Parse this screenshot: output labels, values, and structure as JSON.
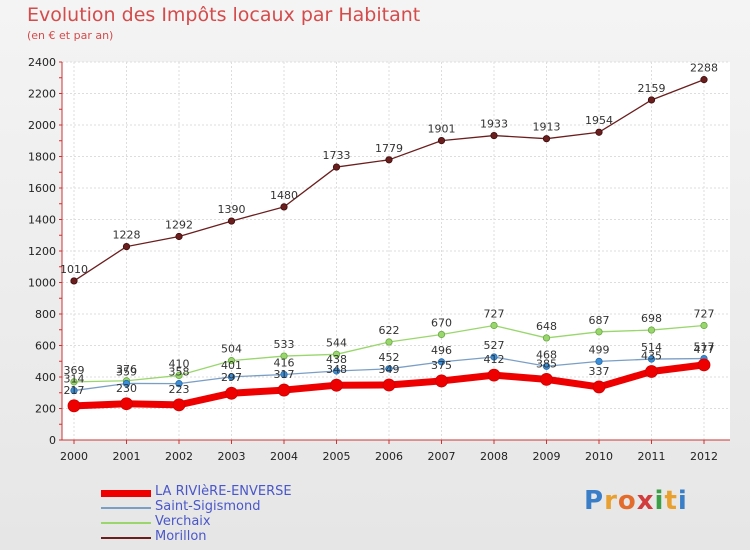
{
  "title": "Evolution des Impôts locaux par Habitant",
  "subtitle": "(en € et par an)",
  "logo": "Proxiti",
  "chart_data": {
    "type": "line",
    "x": [
      "2000",
      "2001",
      "2002",
      "2003",
      "2004",
      "2005",
      "2006",
      "2007",
      "2008",
      "2009",
      "2010",
      "2011",
      "2012"
    ],
    "ylim": [
      0,
      2400
    ],
    "yticks": [
      0,
      200,
      400,
      600,
      800,
      1000,
      1200,
      1400,
      1600,
      1800,
      2000,
      2200,
      2400
    ],
    "grid": true,
    "legend_position": "bottom-left",
    "series": [
      {
        "name": "Morillon",
        "color": "#6b1e1e",
        "values": [
          1010,
          1228,
          1292,
          1390,
          1480,
          1733,
          1779,
          1901,
          1933,
          1913,
          1954,
          2159,
          2288
        ]
      },
      {
        "name": "Verchaix",
        "color": "#99d76c",
        "values": [
          369,
          376,
          410,
          504,
          533,
          544,
          622,
          670,
          727,
          648,
          687,
          698,
          727
        ]
      },
      {
        "name": "Saint-Sigismond",
        "color": "#7a9fc6",
        "values": [
          314,
          359,
          358,
          401,
          416,
          438,
          452,
          496,
          527,
          468,
          499,
          514,
          517
        ]
      },
      {
        "name": "LA RIVIèRE-ENVERSE",
        "color": "#ee0000",
        "values": [
          217,
          230,
          223,
          297,
          317,
          348,
          349,
          375,
          412,
          385,
          337,
          435,
          477
        ]
      }
    ],
    "legend": [
      "LA RIVIèRE-ENVERSE",
      "Saint-Sigismond",
      "Verchaix",
      "Morillon"
    ]
  }
}
